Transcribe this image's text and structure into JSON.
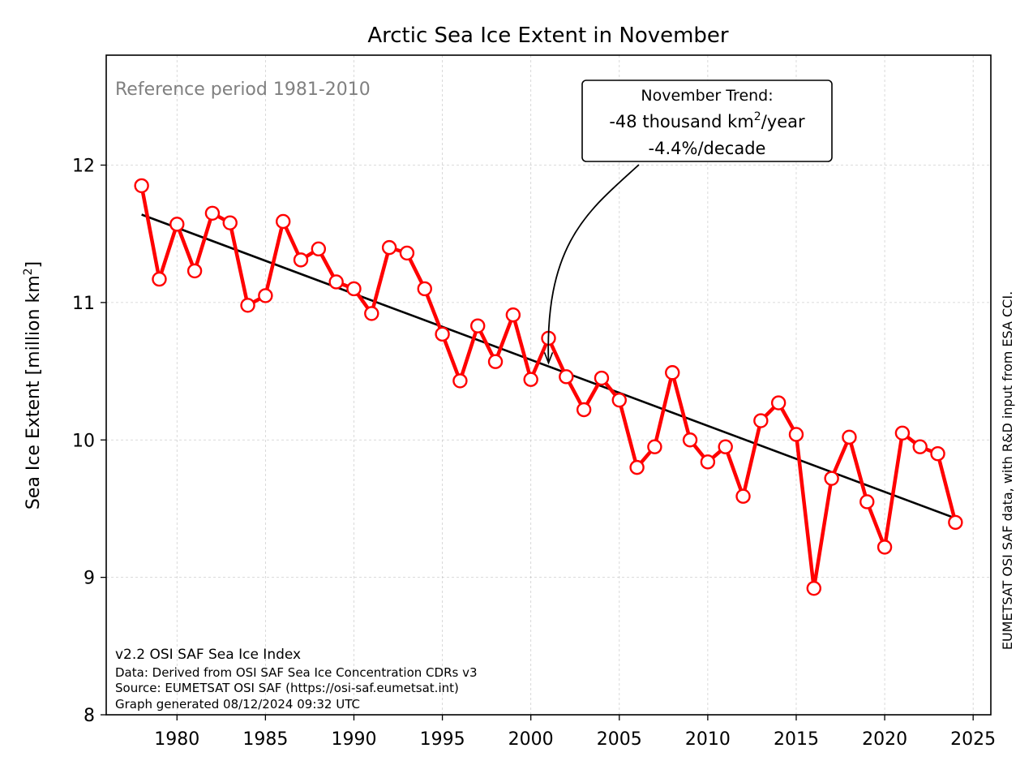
{
  "chart_data": {
    "type": "line",
    "title": "Arctic Sea Ice Extent in November",
    "xlabel": "",
    "ylabel": "Sea Ice Extent [million km",
    "ylabel_sup": "2",
    "ylabel_end": "]",
    "xlim": [
      1976,
      2026
    ],
    "ylim": [
      8.0,
      12.8
    ],
    "x_ticks": [
      1980,
      1985,
      1990,
      1995,
      2000,
      2005,
      2010,
      2015,
      2020,
      2025
    ],
    "y_ticks": [
      8,
      9,
      10,
      11,
      12
    ],
    "grid": true,
    "series": [
      {
        "color": "#ff0000",
        "x": [
          1978,
          1979,
          1980,
          1981,
          1982,
          1983,
          1984,
          1985,
          1986,
          1987,
          1988,
          1989,
          1990,
          1991,
          1992,
          1993,
          1994,
          1995,
          1996,
          1997,
          1998,
          1999,
          2000,
          2001,
          2002,
          2003,
          2004,
          2005,
          2006,
          2007,
          2008,
          2009,
          2010,
          2011,
          2012,
          2013,
          2014,
          2015,
          2016,
          2017,
          2018,
          2019,
          2020,
          2021,
          2022,
          2023,
          2024
        ],
        "values": [
          11.85,
          11.17,
          11.57,
          11.23,
          11.65,
          11.58,
          10.98,
          11.05,
          11.59,
          11.31,
          11.39,
          11.15,
          11.1,
          10.92,
          11.4,
          11.36,
          11.1,
          10.77,
          10.43,
          10.83,
          10.57,
          10.91,
          10.44,
          10.74,
          10.46,
          10.22,
          10.45,
          10.29,
          9.8,
          9.95,
          10.49,
          10.0,
          9.84,
          9.95,
          9.59,
          10.14,
          10.27,
          10.04,
          8.92,
          9.72,
          10.02,
          9.55,
          9.22,
          10.05,
          9.95,
          9.9,
          9.4
        ]
      }
    ],
    "trend": {
      "color": "#000000",
      "x": [
        1978,
        2024
      ],
      "values": [
        11.64,
        9.43
      ]
    }
  },
  "reference_text": "Reference period 1981-2010",
  "annotation": {
    "line1": "November Trend:",
    "line2_pre": "-48 thousand km",
    "line2_sup": "2",
    "line2_post": "/year",
    "line3": "-4.4%/decade",
    "arrow_target": {
      "x": 2001,
      "y": 10.56
    }
  },
  "footer": {
    "line1": "v2.2 OSI SAF Sea Ice Index",
    "line2": "Data: Derived from OSI SAF Sea Ice Concentration CDRs v3",
    "line3": "Source: EUMETSAT OSI SAF (https://osi-saf.eumetsat.int)",
    "line4": "Graph generated 08/12/2024 09:32 UTC"
  },
  "side_credit": "EUMETSAT OSI SAF data, with R&D input from ESA CCI."
}
